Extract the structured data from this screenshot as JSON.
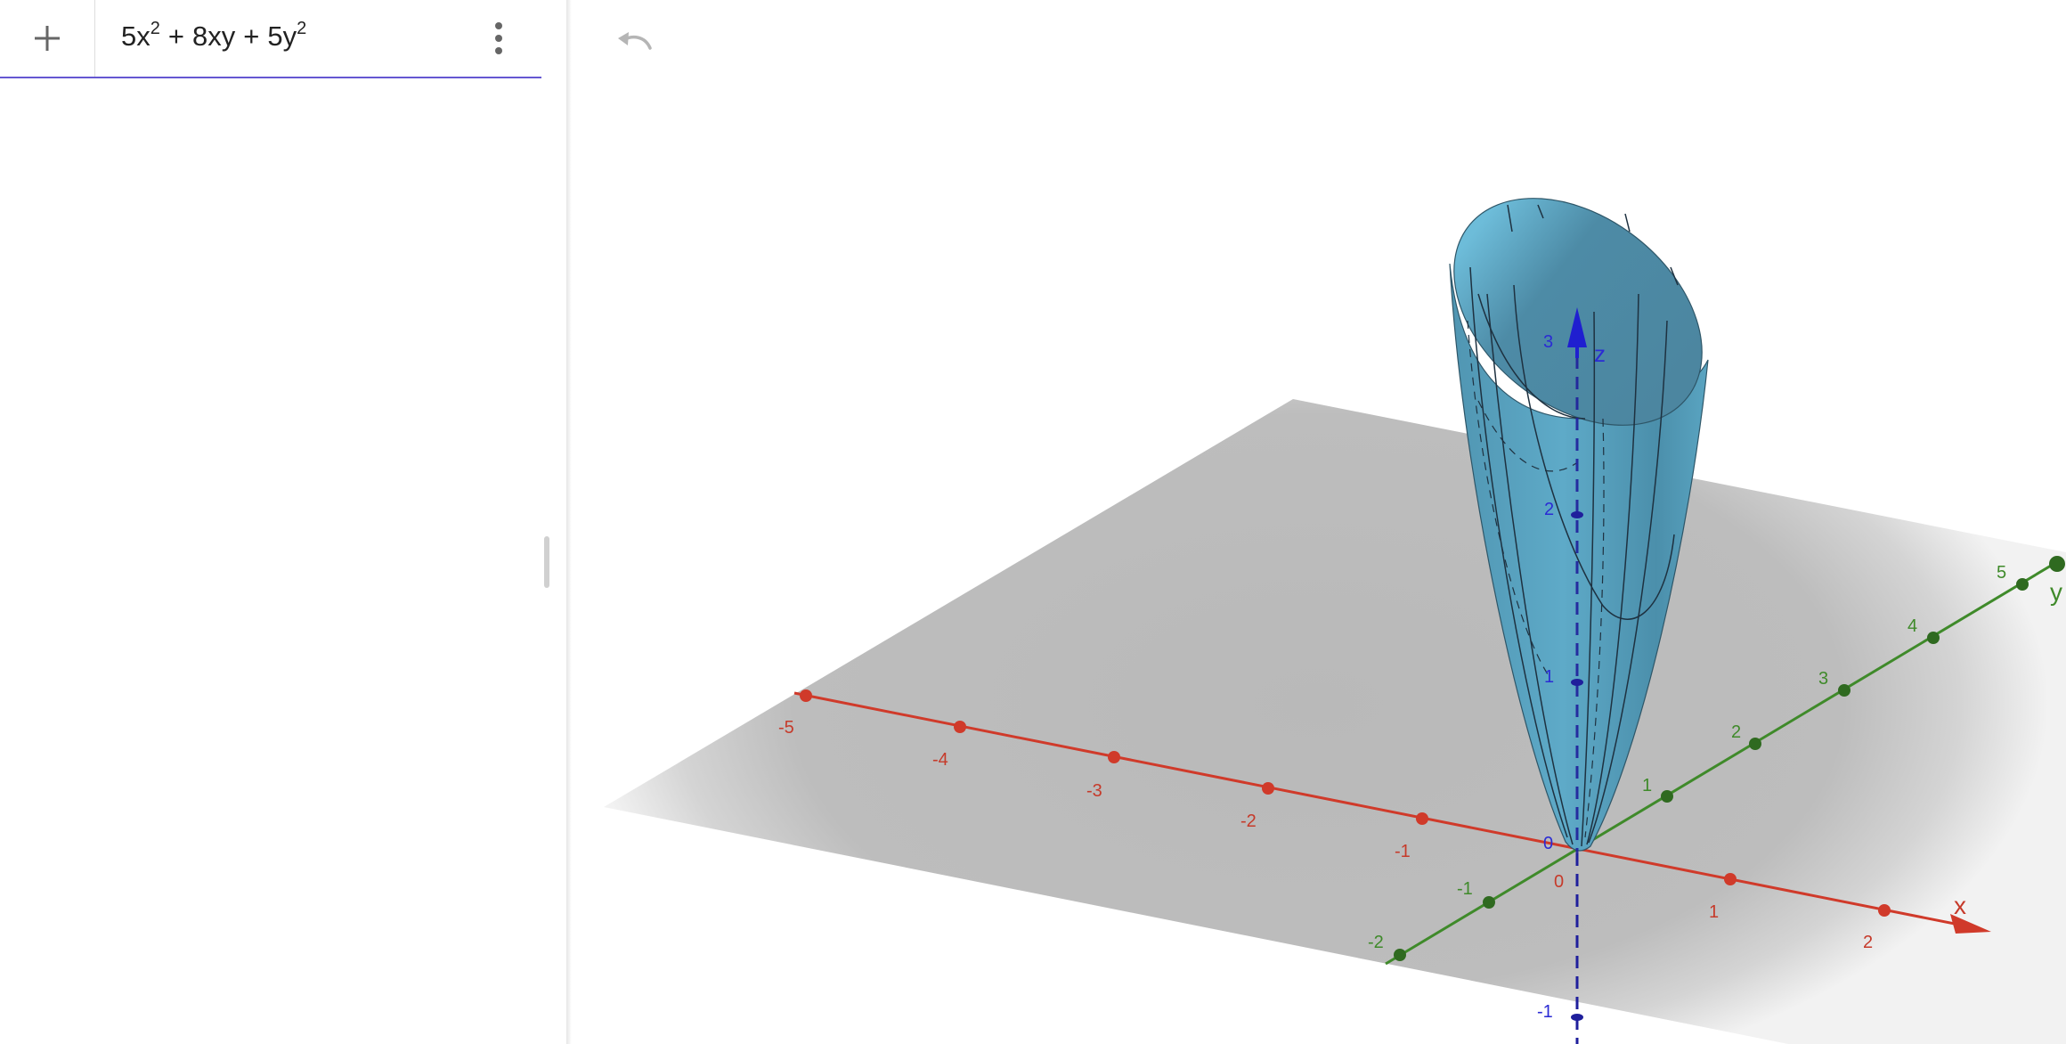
{
  "algebra": {
    "add_icon": "plus-icon",
    "menu_icon": "more-vertical-icon",
    "expression": {
      "t1": "5x",
      "e1": "2",
      "op1": "+",
      "t2": "8xy",
      "op2": "+",
      "t3": "5y",
      "e2": "2"
    }
  },
  "graphics": {
    "undo_icon": "undo-icon",
    "surface_color": "#5aa6c3",
    "axes": {
      "x": {
        "label": "x",
        "color": "#d03a2a",
        "ticks": [
          "-5",
          "-4",
          "-3",
          "-2",
          "-1",
          "1",
          "2"
        ]
      },
      "y": {
        "label": "y",
        "color": "#3f8a2a",
        "ticks": [
          "-2",
          "-1",
          "1",
          "2",
          "3",
          "4",
          "5"
        ]
      },
      "z": {
        "label": "z",
        "color": "#2b2bd4",
        "ticks": [
          "-1",
          "1",
          "2",
          "3"
        ]
      },
      "origin_labels": [
        "0",
        "0"
      ]
    }
  }
}
